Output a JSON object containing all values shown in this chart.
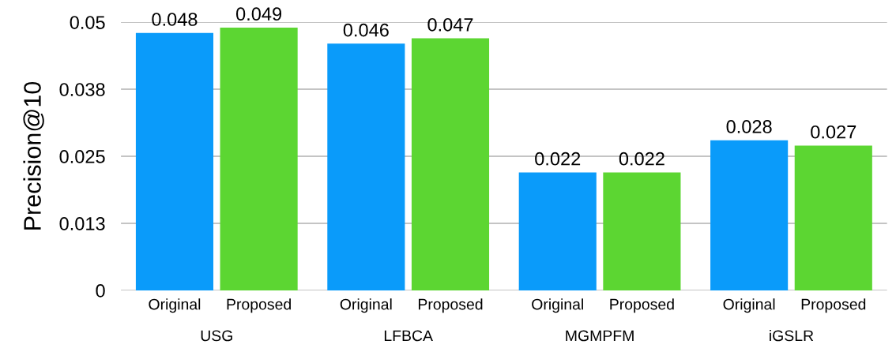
{
  "chart_data": {
    "type": "bar",
    "ylabel": "Precision@10",
    "categories": [
      "USG",
      "LFBCA",
      "MGMPFM",
      "iGSLR"
    ],
    "series": [
      {
        "name": "Original",
        "color": "#0a9bfa",
        "values": [
          0.048,
          0.046,
          0.022,
          0.028
        ]
      },
      {
        "name": "Proposed",
        "color": "#5cd632",
        "values": [
          0.049,
          0.047,
          0.022,
          0.027
        ]
      }
    ],
    "ylim": [
      0,
      0.05
    ],
    "yticks": [
      0,
      {
        "value": 0.0125,
        "label": "0.013"
      },
      {
        "value": 0.025,
        "label": "0.025"
      },
      {
        "value": 0.0375,
        "label": "0.038"
      },
      0.05
    ],
    "grid": "y",
    "data_labels": true,
    "legend": false
  }
}
